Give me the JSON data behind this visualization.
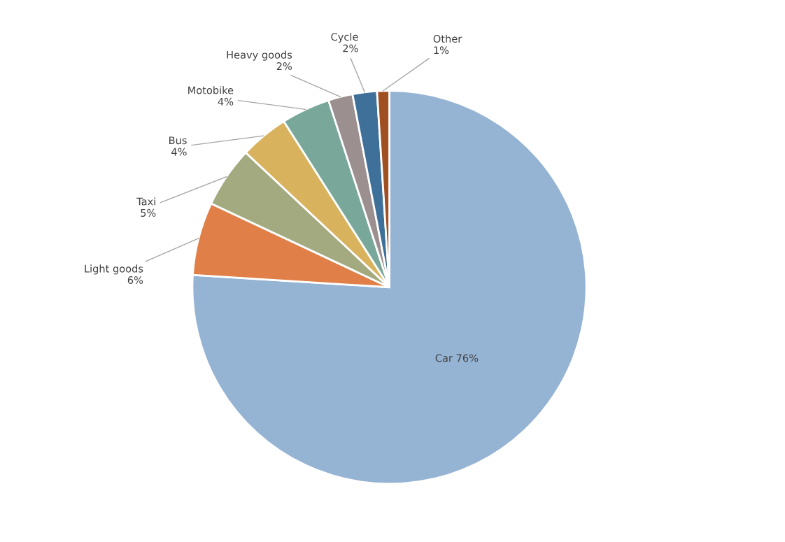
{
  "chart_data": {
    "type": "pie",
    "categories": [
      "Car",
      "Light goods",
      "Taxi",
      "Bus",
      "Motobike",
      "Heavy goods",
      "Cycle",
      "Other"
    ],
    "values": [
      76,
      6,
      5,
      4,
      4,
      2,
      2,
      1
    ],
    "colors": [
      "#95b3d3",
      "#e07f48",
      "#a3aa80",
      "#d9b25e",
      "#79a79a",
      "#9b8f8f",
      "#3f7099",
      "#a04f22"
    ],
    "value_labels": [
      "76%",
      "6%",
      "5%",
      "4%",
      "4%",
      "2%",
      "2%",
      "1%"
    ]
  }
}
